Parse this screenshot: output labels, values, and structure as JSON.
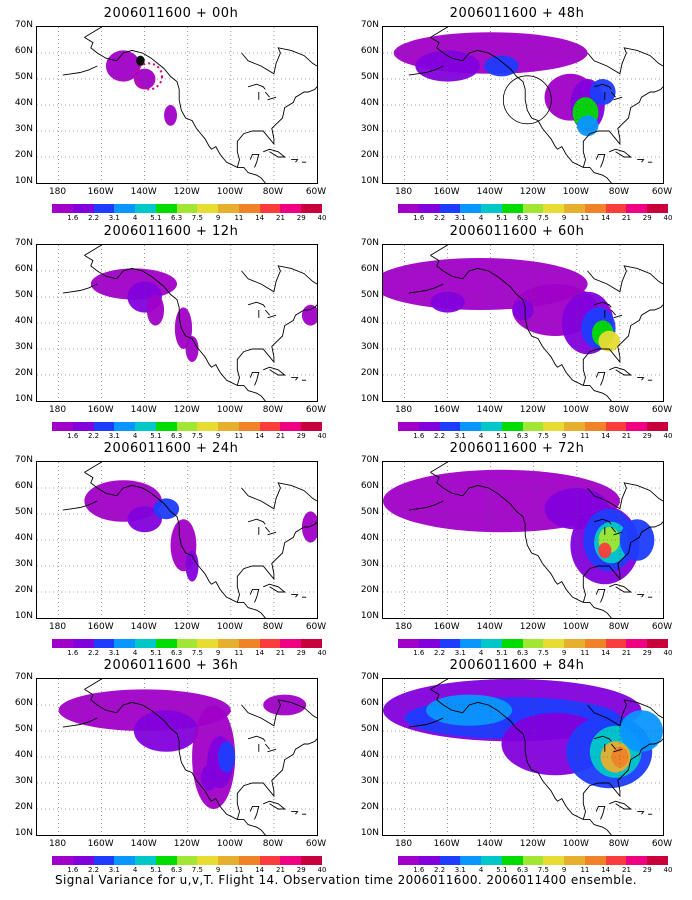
{
  "panels": [
    {
      "title": "2006011600 + 00h"
    },
    {
      "title": "2006011600 + 48h"
    },
    {
      "title": "2006011600 + 12h"
    },
    {
      "title": "2006011600 + 60h"
    },
    {
      "title": "2006011600 + 24h"
    },
    {
      "title": "2006011600 + 72h"
    },
    {
      "title": "2006011600 + 36h"
    },
    {
      "title": "2006011600 + 84h"
    }
  ],
  "lat_labels": [
    "70N",
    "60N",
    "50N",
    "40N",
    "30N",
    "20N",
    "10N"
  ],
  "lon_labels": [
    "180",
    "160W",
    "140W",
    "120W",
    "100W",
    "80W",
    "60W"
  ],
  "colorbar_labels": [
    "1.6",
    "2.2",
    "3.1",
    "4",
    "5.1",
    "6.3",
    "7.5",
    "9",
    "11",
    "14",
    "21",
    "29",
    "40"
  ],
  "colorbar_colors": [
    "#a000c8",
    "#8200dc",
    "#1e3cff",
    "#0a96ff",
    "#00c8c8",
    "#00dc00",
    "#a0e632",
    "#e6dc32",
    "#e6af2d",
    "#f08228",
    "#fa3c3c",
    "#f00082",
    "#c8003c"
  ],
  "caption": "Signal Variance for u,v,T. Flight 14. Observation time 2006011600. 2006011400 ensemble."
}
